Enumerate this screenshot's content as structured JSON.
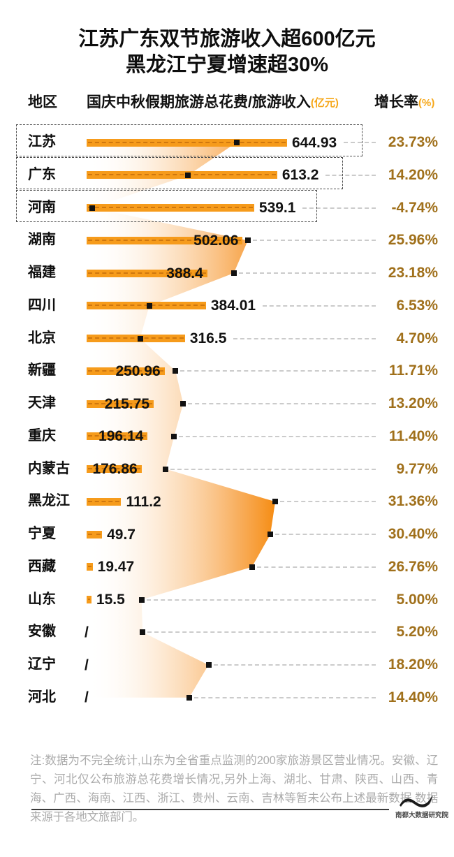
{
  "title": {
    "line1": "江苏广东双节旅游收入超600亿元",
    "line2": "黑龙江宁夏增速超30%"
  },
  "table_headers": {
    "region": "地区",
    "value_main": "国庆中秋假期旅游总花费/旅游收入",
    "value_unit": "(亿元)",
    "growth_main": "增长率",
    "growth_unit": "(%)"
  },
  "chart_data": {
    "type": "bar",
    "title": "江苏广东双节旅游收入超600亿元 黑龙江宁夏增速超30%",
    "value_axis_label": "国庆中秋假期旅游总花费/旅游收入(亿元)",
    "growth_axis_label": "增长率(%)",
    "series": [
      {
        "name": "国庆中秋假期旅游总花费/旅游收入(亿元)",
        "type": "bar"
      },
      {
        "name": "增长率(%)",
        "type": "area-marker"
      }
    ],
    "growth_range": [
      -4.74,
      31.36
    ],
    "rows": [
      {
        "region": "江苏",
        "value": 644.93,
        "value_label": "644.93",
        "growth": 23.73,
        "growth_label": "23.73%",
        "highlighted": true
      },
      {
        "region": "广东",
        "value": 613.2,
        "value_label": "613.2",
        "growth": 14.2,
        "growth_label": "14.20%",
        "highlighted": true
      },
      {
        "region": "河南",
        "value": 539.1,
        "value_label": "539.1",
        "growth": -4.74,
        "growth_label": "-4.74%",
        "highlighted": true
      },
      {
        "region": "湖南",
        "value": 502.06,
        "value_label": "502.06",
        "growth": 25.96,
        "growth_label": "25.96%",
        "highlighted": false
      },
      {
        "region": "福建",
        "value": 388.4,
        "value_label": "388.4",
        "growth": 23.18,
        "growth_label": "23.18%",
        "highlighted": false
      },
      {
        "region": "四川",
        "value": 384.01,
        "value_label": "384.01",
        "growth": 6.53,
        "growth_label": "6.53%",
        "highlighted": false
      },
      {
        "region": "北京",
        "value": 316.5,
        "value_label": "316.5",
        "growth": 4.7,
        "growth_label": "4.70%",
        "highlighted": false
      },
      {
        "region": "新疆",
        "value": 250.96,
        "value_label": "250.96",
        "growth": 11.71,
        "growth_label": "11.71%",
        "highlighted": false
      },
      {
        "region": "天津",
        "value": 215.75,
        "value_label": "215.75",
        "growth": 13.2,
        "growth_label": "13.20%",
        "highlighted": false
      },
      {
        "region": "重庆",
        "value": 196.14,
        "value_label": "196.14",
        "growth": 11.4,
        "growth_label": "11.40%",
        "highlighted": false
      },
      {
        "region": "内蒙古",
        "value": 176.86,
        "value_label": "176.86",
        "growth": 9.77,
        "growth_label": "9.77%",
        "highlighted": false
      },
      {
        "region": "黑龙江",
        "value": 111.2,
        "value_label": "111.2",
        "growth": 31.36,
        "growth_label": "31.36%",
        "highlighted": false
      },
      {
        "region": "宁夏",
        "value": 49.7,
        "value_label": "49.7",
        "growth": 30.4,
        "growth_label": "30.40%",
        "highlighted": false
      },
      {
        "region": "西藏",
        "value": 19.47,
        "value_label": "19.47",
        "growth": 26.76,
        "growth_label": "26.76%",
        "highlighted": false
      },
      {
        "region": "山东",
        "value": 15.5,
        "value_label": "15.5",
        "growth": 5.0,
        "growth_label": "5.00%",
        "highlighted": false
      },
      {
        "region": "安徽",
        "value": null,
        "value_label": "/",
        "growth": 5.2,
        "growth_label": "5.20%",
        "highlighted": false
      },
      {
        "region": "辽宁",
        "value": null,
        "value_label": "/",
        "growth": 18.2,
        "growth_label": "18.20%",
        "highlighted": false
      },
      {
        "region": "河北",
        "value": null,
        "value_label": "/",
        "growth": 14.4,
        "growth_label": "14.40%",
        "highlighted": false
      }
    ]
  },
  "footer": {
    "note": "注:数据为不完全统计,山东为全省重点监测的200家旅游景区营业情况。安徽、辽宁、河北仅公布旅游总花费增长情况,另外上海、湖北、甘肃、陕西、山西、青海、广西、海南、江西、浙江、贵州、云南、吉林等暂未公布上述最新数据,数据来源于各地文旅部门。",
    "source": "南都大数据研究院"
  },
  "colors": {
    "bar": "#F69B1B",
    "area_edge": "#F68C12",
    "growth_text": "#A0701B",
    "header_accent": "#F6A719",
    "marker": "#121212",
    "note_text": "#ABABAB"
  }
}
